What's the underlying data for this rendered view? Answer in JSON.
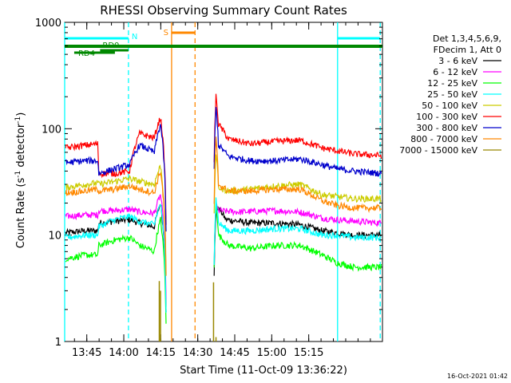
{
  "chart_data": {
    "type": "line",
    "title": "RHESSI Observing Summary Count Rates",
    "xlabel": "Start Time (11-Oct-09 13:36:22)",
    "ylabel_main": "Count Rate (s",
    "ylabel_sup1": "-1",
    "ylabel_mid": " detector",
    "ylabel_sup2": "-1",
    "ylabel_end": ")",
    "y_scale": "log",
    "ylim": [
      1,
      1000
    ],
    "y_ticks": [
      1,
      10,
      100,
      1000
    ],
    "y_tick_labels": [
      "1",
      "10",
      "100",
      "1000"
    ],
    "xlim_minutes": [
      -0.37,
      128.5
    ],
    "x_ticks_minutes": [
      8.6,
      23.6,
      38.6,
      53.6,
      68.6,
      83.6,
      98.6,
      113.6,
      128.6
    ],
    "x_tick_labels": [
      "13:45",
      "14:00",
      "14:15",
      "14:30",
      "14:45",
      "15:00",
      "15:15"
    ],
    "x_major_minutes": [
      8.6,
      23.6,
      38.6,
      53.6,
      68.6,
      83.6,
      98.6
    ],
    "footer_date": "16-Oct-2021 01:42",
    "legend": {
      "title_lines": [
        "Det 1,3,4,5,6,9,",
        "FDecim 1, Att 0"
      ],
      "placement": "right"
    },
    "series": [
      {
        "name": "3 - 6 keV",
        "color": "#000000",
        "segments": [
          [
            0,
            10.5
          ],
          [
            8,
            11
          ],
          [
            13,
            11
          ],
          [
            13.5,
            13
          ],
          [
            20,
            13.5
          ],
          [
            26,
            14
          ],
          [
            30,
            13
          ],
          [
            36,
            12
          ],
          [
            38.5,
            20
          ],
          [
            41,
            0
          ],
          [
            60,
            0
          ],
          [
            61,
            16
          ],
          [
            62,
            18
          ],
          [
            65,
            14
          ],
          [
            75,
            13
          ],
          [
            85,
            13
          ],
          [
            95,
            12.5
          ],
          [
            104,
            11
          ],
          [
            110,
            10.5
          ],
          [
            117,
            10
          ],
          [
            128,
            10
          ]
        ]
      },
      {
        "name": "6 - 12 keV",
        "color": "#ff00ff",
        "segments": [
          [
            0,
            15
          ],
          [
            8,
            15.5
          ],
          [
            13,
            15.5
          ],
          [
            13.5,
            17
          ],
          [
            20,
            17
          ],
          [
            26,
            17.5
          ],
          [
            30,
            16.5
          ],
          [
            36,
            16
          ],
          [
            38.5,
            24
          ],
          [
            41,
            0
          ],
          [
            60,
            0
          ],
          [
            61,
            19
          ],
          [
            62,
            17
          ],
          [
            70,
            16.5
          ],
          [
            85,
            17
          ],
          [
            95,
            16.5
          ],
          [
            104,
            14.5
          ],
          [
            110,
            14
          ],
          [
            117,
            13.5
          ],
          [
            128,
            13
          ]
        ]
      },
      {
        "name": "12 - 25 keV",
        "color": "#00ff00",
        "segments": [
          [
            0,
            6
          ],
          [
            8,
            6.5
          ],
          [
            13,
            6.5
          ],
          [
            13.5,
            8
          ],
          [
            20,
            9
          ],
          [
            26,
            9.5
          ],
          [
            30,
            8
          ],
          [
            36,
            7
          ],
          [
            38.5,
            14
          ],
          [
            41,
            0
          ],
          [
            60,
            0
          ],
          [
            61,
            20
          ],
          [
            62,
            10
          ],
          [
            66,
            8
          ],
          [
            75,
            7.5
          ],
          [
            85,
            8
          ],
          [
            95,
            8
          ],
          [
            104,
            6.5
          ],
          [
            110,
            5.5
          ],
          [
            117,
            5
          ],
          [
            128,
            5
          ]
        ]
      },
      {
        "name": "25 - 50 keV",
        "color": "#00ffff",
        "segments": [
          [
            0,
            9.5
          ],
          [
            8,
            10
          ],
          [
            13,
            10
          ],
          [
            13.5,
            12
          ],
          [
            20,
            14
          ],
          [
            26,
            15
          ],
          [
            30,
            13.5
          ],
          [
            36,
            12.5
          ],
          [
            38.5,
            20
          ],
          [
            41,
            0
          ],
          [
            60,
            0
          ],
          [
            61,
            22
          ],
          [
            62,
            13
          ],
          [
            66,
            11
          ],
          [
            75,
            11
          ],
          [
            85,
            11.5
          ],
          [
            95,
            11.5
          ],
          [
            104,
            10
          ],
          [
            110,
            10
          ],
          [
            117,
            9.5
          ],
          [
            128,
            9.5
          ]
        ]
      },
      {
        "name": "50 - 100 keV",
        "color": "#cccc00",
        "segments": [
          [
            0,
            28
          ],
          [
            8,
            30
          ],
          [
            13,
            31
          ],
          [
            13.5,
            30
          ],
          [
            20,
            32
          ],
          [
            26,
            34
          ],
          [
            30,
            32
          ],
          [
            36,
            30
          ],
          [
            38.5,
            45
          ],
          [
            41,
            0
          ],
          [
            60,
            0
          ],
          [
            61,
            60
          ],
          [
            62,
            28
          ],
          [
            66,
            26
          ],
          [
            75,
            27
          ],
          [
            85,
            29
          ],
          [
            95,
            30
          ],
          [
            104,
            24
          ],
          [
            110,
            23
          ],
          [
            117,
            22
          ],
          [
            128,
            22
          ]
        ]
      },
      {
        "name": "100 - 300 keV",
        "color": "#ff0000",
        "segments": [
          [
            0,
            66
          ],
          [
            8,
            70
          ],
          [
            13,
            72
          ],
          [
            13.5,
            38
          ],
          [
            20,
            38
          ],
          [
            26,
            40
          ],
          [
            30,
            90
          ],
          [
            36,
            82
          ],
          [
            38.5,
            128
          ],
          [
            41,
            0
          ],
          [
            60,
            0
          ],
          [
            61,
            200
          ],
          [
            62,
            110
          ],
          [
            66,
            80
          ],
          [
            75,
            72
          ],
          [
            85,
            76
          ],
          [
            95,
            78
          ],
          [
            104,
            66
          ],
          [
            110,
            62
          ],
          [
            117,
            58
          ],
          [
            128,
            56
          ]
        ]
      },
      {
        "name": "300 - 800 keV",
        "color": "#0000cc",
        "segments": [
          [
            0,
            48
          ],
          [
            8,
            50
          ],
          [
            13,
            50
          ],
          [
            13.5,
            38
          ],
          [
            20,
            42
          ],
          [
            26,
            46
          ],
          [
            30,
            70
          ],
          [
            36,
            60
          ],
          [
            38.5,
            110
          ],
          [
            41,
            0
          ],
          [
            60,
            0
          ],
          [
            61,
            160
          ],
          [
            62,
            70
          ],
          [
            66,
            55
          ],
          [
            75,
            50
          ],
          [
            85,
            50
          ],
          [
            95,
            52
          ],
          [
            104,
            46
          ],
          [
            110,
            42
          ],
          [
            117,
            40
          ],
          [
            128,
            38
          ]
        ]
      },
      {
        "name": "800 - 7000 keV",
        "color": "#ff8800",
        "segments": [
          [
            0,
            25
          ],
          [
            8,
            26
          ],
          [
            13,
            27
          ],
          [
            13.5,
            26
          ],
          [
            20,
            27
          ],
          [
            26,
            29
          ],
          [
            30,
            27
          ],
          [
            36,
            25
          ],
          [
            38.5,
            40
          ],
          [
            41,
            0
          ],
          [
            60,
            0
          ],
          [
            61,
            80
          ],
          [
            62,
            30
          ],
          [
            66,
            26
          ],
          [
            75,
            26
          ],
          [
            85,
            27
          ],
          [
            95,
            27
          ],
          [
            104,
            21
          ],
          [
            110,
            19
          ],
          [
            117,
            18
          ],
          [
            128,
            18
          ]
        ]
      },
      {
        "name": "7000 - 15000 keV",
        "color": "#998800",
        "segments": []
      }
    ],
    "spikes_7000": [
      [
        38,
        3.7
      ],
      [
        38.5,
        3.0
      ],
      [
        60,
        3.6
      ],
      [
        61,
        1.1
      ]
    ],
    "attenuator_lines": [
      {
        "type": "cyan",
        "color": "#00ffff",
        "style": "solid",
        "x": -0.37
      },
      {
        "type": "cyan",
        "color": "#00ffff",
        "style": "dashed",
        "x": 25.5
      },
      {
        "type": "cyan",
        "color": "#00ffff",
        "style": "solid",
        "x": 110.3
      },
      {
        "type": "cyan",
        "color": "#00ffff",
        "style": "dashed",
        "x": 127.6
      },
      {
        "type": "orange",
        "color": "#ff8800",
        "style": "solid",
        "x": 43
      },
      {
        "type": "orange",
        "color": "#ff8800",
        "style": "dashed",
        "x": 52.5
      }
    ],
    "state_bars": [
      {
        "label": "N",
        "color": "#00ffff",
        "x1": -0.37,
        "x2": 25.5,
        "level": "top",
        "label_pos": "right"
      },
      {
        "label": "",
        "color": "#00ffff",
        "x1": 110.3,
        "x2": 127.6,
        "level": "top",
        "label_pos": "none"
      },
      {
        "label": "RD0",
        "color": "#008800",
        "x1": 14,
        "x2": 25.5,
        "level": "mid",
        "label_pos": "above"
      },
      {
        "label": "RD4",
        "color": "#008800",
        "x1": 3.5,
        "x2": 20,
        "level": "low",
        "label_pos": "below"
      },
      {
        "label": "",
        "color": "#008800",
        "x1": -0.37,
        "x2": 128.5,
        "level": "main",
        "label_pos": "none"
      },
      {
        "label": "S",
        "color": "#ff8800",
        "x1": 43,
        "x2": 52.5,
        "level": "s",
        "label_pos": "left"
      }
    ]
  }
}
